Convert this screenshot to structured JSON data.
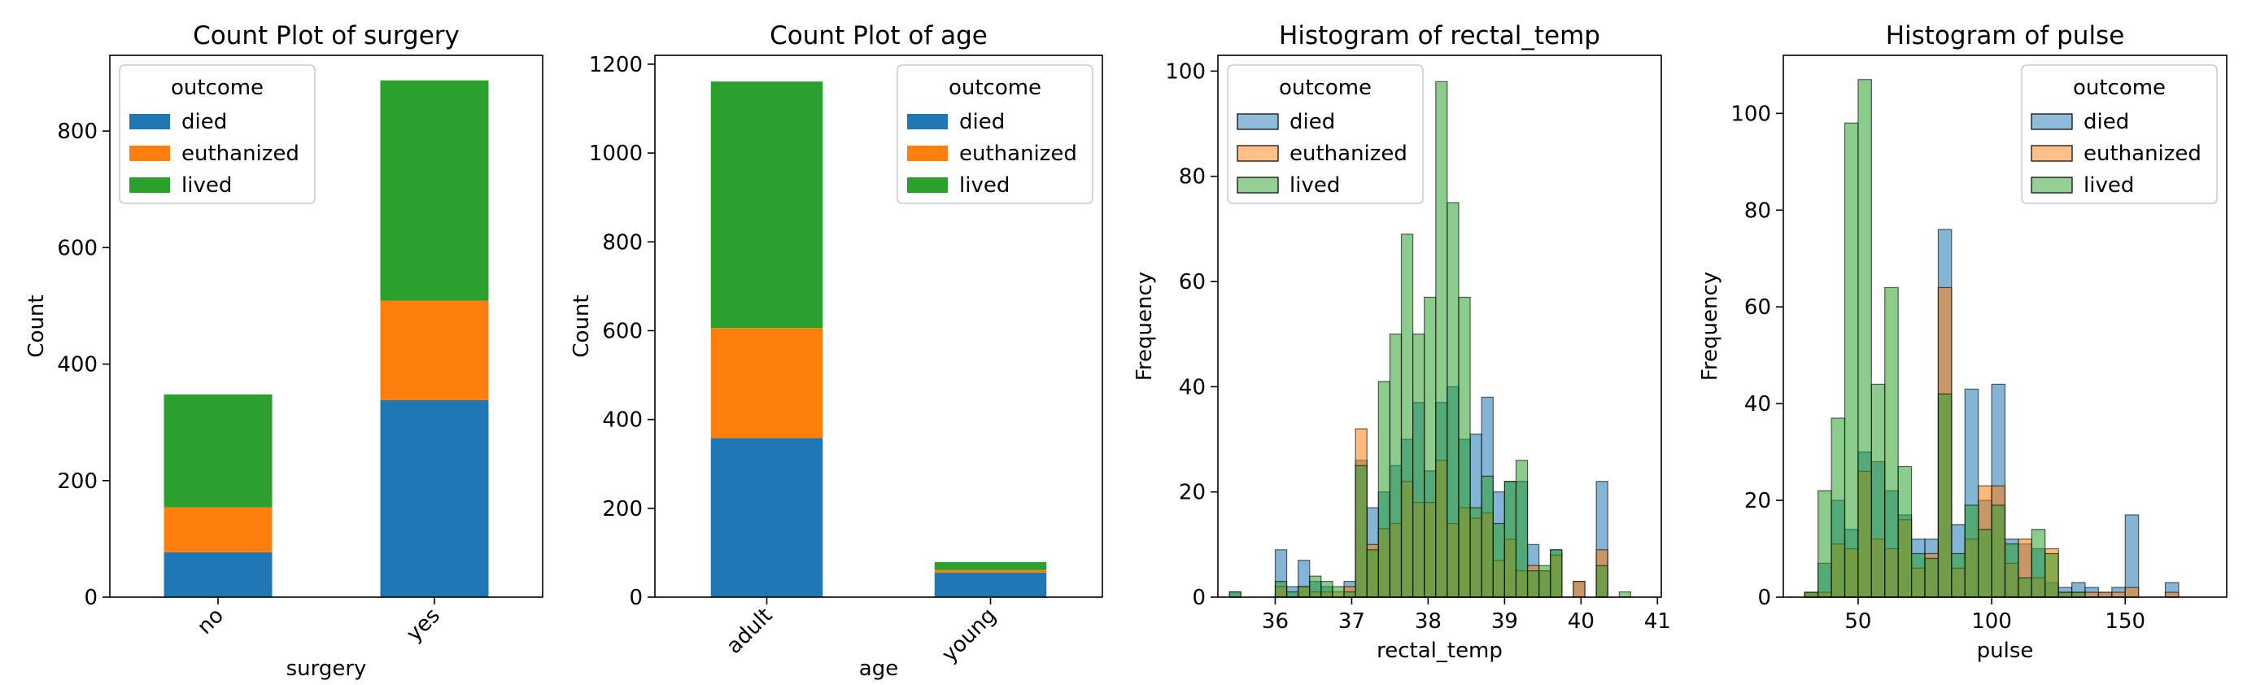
{
  "chart_data": [
    {
      "type": "bar",
      "stacked": true,
      "title": "Count Plot of surgery",
      "xlabel": "surgery",
      "ylabel": "Count",
      "categories": [
        "no",
        "yes"
      ],
      "series": [
        {
          "name": "died",
          "values": [
            77,
            338
          ]
        },
        {
          "name": "euthanized",
          "values": [
            77,
            171
          ]
        },
        {
          "name": "lived",
          "values": [
            194,
            378
          ]
        }
      ],
      "ylim": [
        0,
        930
      ],
      "yticks": [
        0,
        200,
        400,
        600,
        800
      ],
      "legend": {
        "title": "outcome",
        "position": "top-left"
      },
      "grid": false
    },
    {
      "type": "bar",
      "stacked": true,
      "title": "Count Plot of age",
      "xlabel": "age",
      "ylabel": "Count",
      "categories": [
        "adult",
        "young"
      ],
      "series": [
        {
          "name": "died",
          "values": [
            358,
            55
          ]
        },
        {
          "name": "euthanized",
          "values": [
            248,
            6
          ]
        },
        {
          "name": "lived",
          "values": [
            555,
            18
          ]
        }
      ],
      "ylim": [
        0,
        1220
      ],
      "yticks": [
        0,
        200,
        400,
        600,
        800,
        1000,
        1200
      ],
      "legend": {
        "title": "outcome",
        "position": "top-right"
      },
      "grid": false
    },
    {
      "type": "histogram",
      "title": "Histogram of rectal_temp",
      "xlabel": "rectal_temp",
      "ylabel": "Frequency",
      "bin_start": 35.4,
      "bin_width": 0.15,
      "xlim": [
        35.25,
        41.05
      ],
      "ylim": [
        0,
        103
      ],
      "xticks": [
        36,
        37,
        38,
        39,
        40,
        41
      ],
      "yticks": [
        0,
        20,
        40,
        60,
        80,
        100
      ],
      "series": [
        {
          "name": "died",
          "values": [
            1,
            0,
            0,
            0,
            9,
            2,
            7,
            3,
            2,
            0,
            3,
            26,
            17,
            20,
            25,
            30,
            37,
            24,
            37,
            40,
            30,
            31,
            38,
            20,
            22,
            22,
            10,
            5,
            9,
            0,
            3,
            0,
            22,
            0,
            0
          ]
        },
        {
          "name": "euthanized",
          "values": [
            0,
            0,
            0,
            0,
            2,
            0,
            2,
            1,
            1,
            1,
            2,
            32,
            10,
            13,
            14,
            22,
            18,
            18,
            26,
            14,
            17,
            15,
            16,
            7,
            11,
            5,
            6,
            5,
            8,
            0,
            3,
            0,
            9,
            0,
            0
          ]
        },
        {
          "name": "lived",
          "values": [
            1,
            0,
            0,
            0,
            3,
            1,
            2,
            4,
            3,
            2,
            1,
            25,
            9,
            41,
            50,
            69,
            50,
            57,
            98,
            75,
            57,
            17,
            23,
            14,
            22,
            26,
            5,
            6,
            9,
            0,
            0,
            0,
            6,
            0,
            1
          ]
        }
      ],
      "legend": {
        "title": "outcome",
        "position": "top-left"
      },
      "grid": false
    },
    {
      "type": "histogram",
      "title": "Histogram of pulse",
      "xlabel": "pulse",
      "ylabel": "Frequency",
      "bin_start": 30,
      "bin_width": 5,
      "xlim": [
        22,
        188
      ],
      "ylim": [
        0,
        112
      ],
      "xticks": [
        50,
        100,
        150
      ],
      "yticks": [
        0,
        20,
        40,
        60,
        80,
        100
      ],
      "series": [
        {
          "name": "died",
          "values": [
            1,
            7,
            20,
            14,
            30,
            28,
            22,
            17,
            12,
            12,
            76,
            15,
            43,
            20,
            44,
            12,
            11,
            10,
            3,
            2,
            3,
            2,
            1,
            2,
            17,
            0,
            0,
            3
          ]
        },
        {
          "name": "euthanized",
          "values": [
            1,
            1,
            11,
            10,
            26,
            12,
            10,
            16,
            6,
            9,
            64,
            6,
            12,
            23,
            23,
            7,
            12,
            4,
            10,
            1,
            1,
            1,
            1,
            1,
            2,
            0,
            0,
            1
          ]
        },
        {
          "name": "lived",
          "values": [
            1,
            22,
            37,
            98,
            107,
            44,
            64,
            27,
            9,
            8,
            42,
            9,
            19,
            14,
            19,
            11,
            4,
            14,
            9,
            1,
            1,
            0,
            0,
            0,
            0,
            0,
            0,
            0
          ]
        }
      ],
      "legend": {
        "title": "outcome",
        "position": "top-right"
      },
      "grid": false
    }
  ],
  "colors": {
    "died": "#1f77b4",
    "euthanized": "#ff7f0e",
    "lived": "#2ca02c"
  }
}
